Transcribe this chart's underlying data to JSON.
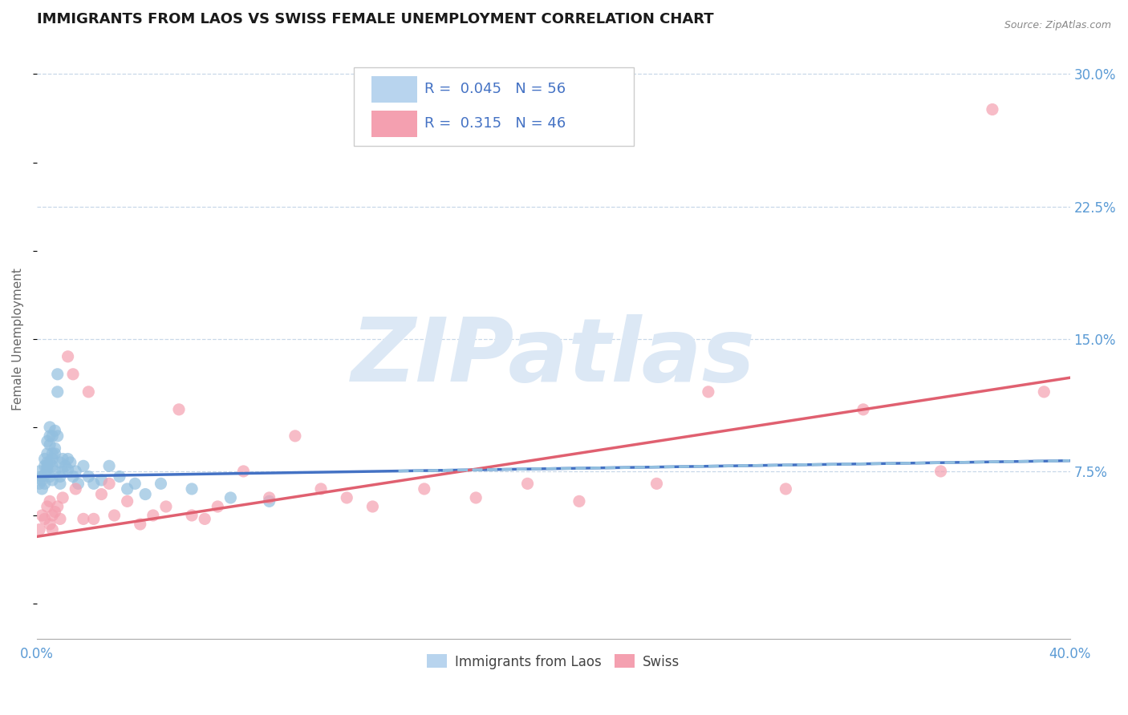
{
  "title": "IMMIGRANTS FROM LAOS VS SWISS FEMALE UNEMPLOYMENT CORRELATION CHART",
  "source_text": "Source: ZipAtlas.com",
  "ylabel": "Female Unemployment",
  "xlim": [
    0.0,
    0.4
  ],
  "ylim": [
    -0.02,
    0.32
  ],
  "ytick_positions": [
    0.075,
    0.15,
    0.225,
    0.3
  ],
  "ytick_labels": [
    "7.5%",
    "15.0%",
    "22.5%",
    "30.0%"
  ],
  "grid_color": "#c8d8e8",
  "background_color": "#ffffff",
  "watermark": "ZIPatlas",
  "watermark_color": "#dce8f5",
  "blue_color": "#92bfdf",
  "blue_trend_color": "#4472c4",
  "pink_color": "#f4a0b0",
  "pink_trend_color": "#e06070",
  "right_tick_color": "#5b9bd5",
  "legend_box_blue": "#b8d4ee",
  "legend_box_pink": "#f4a0b0",
  "legend_text_color": "#4472c4",
  "series": [
    {
      "name": "Immigrants from Laos",
      "R": 0.045,
      "N": 56,
      "trend_style": "-",
      "trend_start_y": 0.072,
      "trend_end_y": 0.081,
      "x": [
        0.001,
        0.001,
        0.002,
        0.002,
        0.002,
        0.003,
        0.003,
        0.003,
        0.003,
        0.004,
        0.004,
        0.004,
        0.004,
        0.004,
        0.005,
        0.005,
        0.005,
        0.005,
        0.005,
        0.006,
        0.006,
        0.006,
        0.006,
        0.006,
        0.007,
        0.007,
        0.007,
        0.007,
        0.008,
        0.008,
        0.008,
        0.009,
        0.009,
        0.009,
        0.01,
        0.01,
        0.011,
        0.012,
        0.012,
        0.013,
        0.014,
        0.015,
        0.016,
        0.018,
        0.02,
        0.022,
        0.025,
        0.028,
        0.032,
        0.035,
        0.038,
        0.042,
        0.048,
        0.06,
        0.075,
        0.09
      ],
      "y": [
        0.075,
        0.068,
        0.072,
        0.065,
        0.07,
        0.082,
        0.078,
        0.068,
        0.073,
        0.085,
        0.078,
        0.092,
        0.076,
        0.08,
        0.09,
        0.08,
        0.095,
        0.072,
        0.1,
        0.082,
        0.078,
        0.07,
        0.085,
        0.095,
        0.098,
        0.088,
        0.075,
        0.085,
        0.12,
        0.095,
        0.13,
        0.08,
        0.072,
        0.068,
        0.082,
        0.075,
        0.078,
        0.082,
        0.076,
        0.08,
        0.072,
        0.075,
        0.068,
        0.078,
        0.072,
        0.068,
        0.07,
        0.078,
        0.072,
        0.065,
        0.068,
        0.062,
        0.068,
        0.065,
        0.06,
        0.058
      ]
    },
    {
      "name": "Swiss",
      "R": 0.315,
      "N": 46,
      "trend_style": "-",
      "trend_start_y": 0.038,
      "trend_end_y": 0.128,
      "x": [
        0.001,
        0.002,
        0.003,
        0.004,
        0.005,
        0.005,
        0.006,
        0.006,
        0.007,
        0.008,
        0.009,
        0.01,
        0.012,
        0.014,
        0.015,
        0.018,
        0.02,
        0.022,
        0.025,
        0.028,
        0.03,
        0.035,
        0.04,
        0.045,
        0.05,
        0.055,
        0.06,
        0.065,
        0.07,
        0.08,
        0.09,
        0.1,
        0.11,
        0.12,
        0.13,
        0.15,
        0.17,
        0.19,
        0.21,
        0.24,
        0.26,
        0.29,
        0.32,
        0.35,
        0.37,
        0.39
      ],
      "y": [
        0.042,
        0.05,
        0.048,
        0.055,
        0.058,
        0.045,
        0.05,
        0.042,
        0.052,
        0.055,
        0.048,
        0.06,
        0.14,
        0.13,
        0.065,
        0.048,
        0.12,
        0.048,
        0.062,
        0.068,
        0.05,
        0.058,
        0.045,
        0.05,
        0.055,
        0.11,
        0.05,
        0.048,
        0.055,
        0.075,
        0.06,
        0.095,
        0.065,
        0.06,
        0.055,
        0.065,
        0.06,
        0.068,
        0.058,
        0.068,
        0.12,
        0.065,
        0.11,
        0.075,
        0.28,
        0.12
      ]
    }
  ],
  "title_fontsize": 13,
  "axis_label_fontsize": 11,
  "tick_fontsize": 12,
  "axis_color": "#aaaaaa"
}
